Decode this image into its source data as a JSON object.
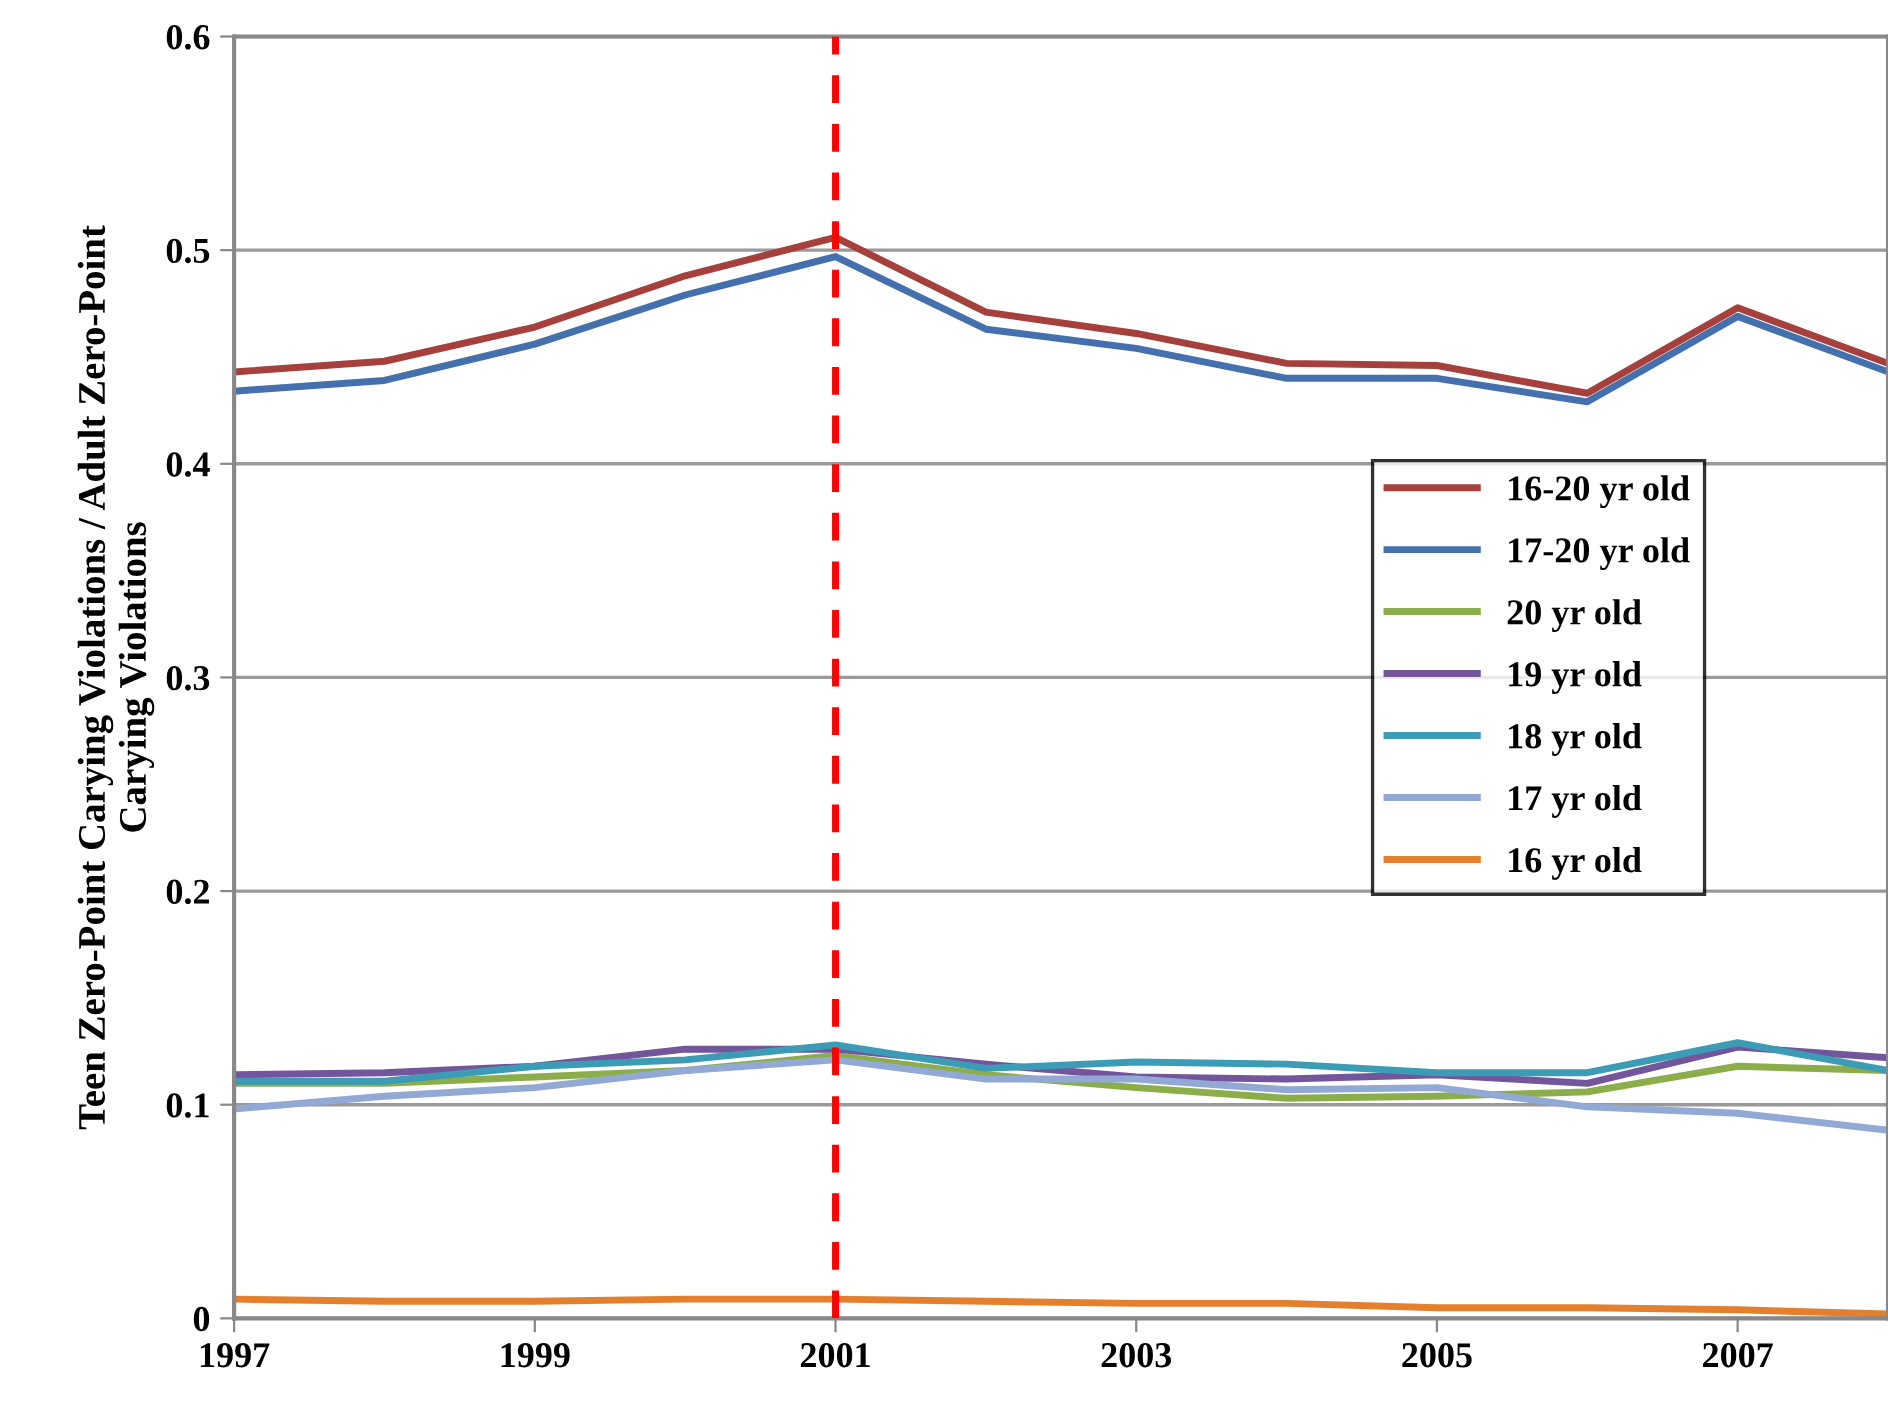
{
  "chart_data": {
    "type": "line",
    "ylabel": "Teen Zero-Point Carying Violations / Adult Zero-Point\nCarying Violations",
    "x": [
      1997,
      1998,
      1999,
      2000,
      2001,
      2002,
      2003,
      2004,
      2005,
      2006,
      2007,
      2008
    ],
    "series": [
      {
        "name": "16-20 yr old",
        "color": "#a6403c",
        "values": [
          0.443,
          0.448,
          0.464,
          0.488,
          0.506,
          0.471,
          0.461,
          0.447,
          0.446,
          0.433,
          0.473,
          0.447
        ]
      },
      {
        "name": "17-20 yr old",
        "color": "#4470ad",
        "values": [
          0.434,
          0.439,
          0.456,
          0.479,
          0.497,
          0.463,
          0.454,
          0.44,
          0.44,
          0.429,
          0.469,
          0.443
        ]
      },
      {
        "name": "20 yr old",
        "color": "#8bae4a",
        "values": [
          0.11,
          0.11,
          0.113,
          0.116,
          0.123,
          0.114,
          0.108,
          0.103,
          0.104,
          0.106,
          0.118,
          0.116
        ]
      },
      {
        "name": "19 yr old",
        "color": "#72559a",
        "values": [
          0.114,
          0.115,
          0.118,
          0.126,
          0.126,
          0.119,
          0.113,
          0.112,
          0.114,
          0.11,
          0.127,
          0.122
        ]
      },
      {
        "name": "18 yr old",
        "color": "#3c9cb5",
        "values": [
          0.111,
          0.111,
          0.118,
          0.121,
          0.128,
          0.117,
          0.12,
          0.119,
          0.115,
          0.115,
          0.129,
          0.116
        ]
      },
      {
        "name": "17 yr old",
        "color": "#91a9d4",
        "values": [
          0.098,
          0.104,
          0.108,
          0.116,
          0.121,
          0.112,
          0.112,
          0.107,
          0.108,
          0.099,
          0.096,
          0.088
        ]
      },
      {
        "name": "16 yr old",
        "color": "#e47f2e",
        "values": [
          0.009,
          0.008,
          0.008,
          0.009,
          0.009,
          0.008,
          0.007,
          0.007,
          0.005,
          0.005,
          0.004,
          0.002
        ]
      }
    ],
    "xlim": [
      1997,
      2008
    ],
    "xticks": [
      1997,
      1999,
      2001,
      2003,
      2005,
      2007
    ],
    "ylim": [
      0,
      0.6
    ],
    "yticks": [
      0,
      0.1,
      0.2,
      0.3,
      0.4,
      0.5,
      0.6
    ],
    "ref_lines": [
      {
        "axis": "x",
        "value": 2001,
        "color": "#ff0000",
        "line_style": "dashed"
      }
    ],
    "grid": "y",
    "legend": "right",
    "marker": "none",
    "line_style": "solid"
  }
}
